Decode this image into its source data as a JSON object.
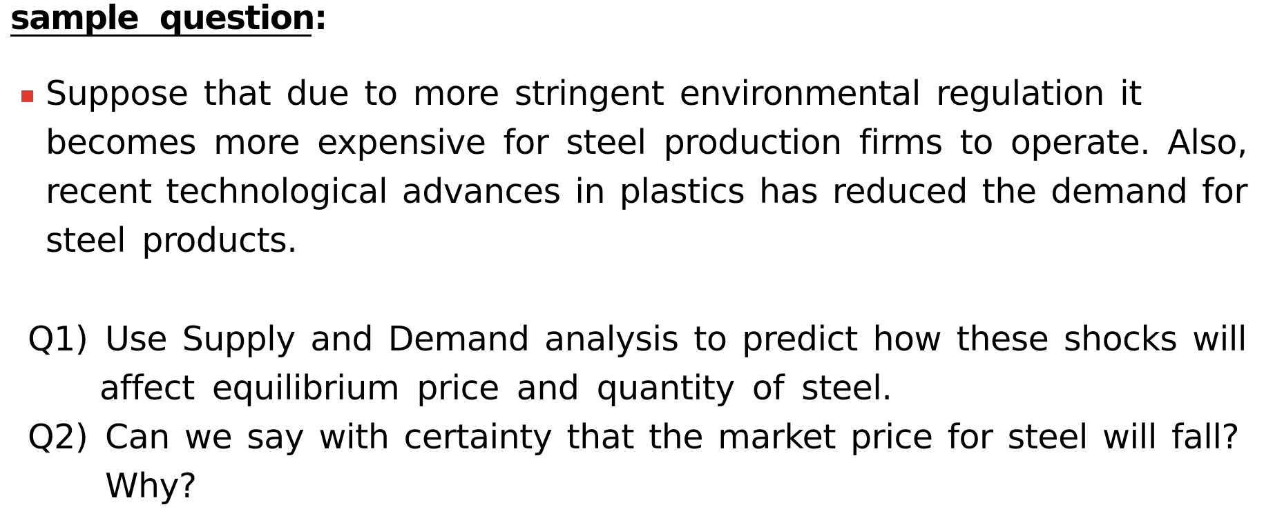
{
  "heading": "sample  question:  ",
  "bullet": {
    "marker_color": "#e23b2e",
    "lines": [
      "Suppose that due to more stringent environmental regulation it",
      "becomes more expensive for steel production firms to operate. Also,",
      "recent technological advances in plastics has reduced the demand for",
      "steel products."
    ]
  },
  "questions": [
    {
      "label": "Q1)",
      "lines": [
        "Use Supply and Demand analysis to predict how these shocks will",
        "affect equilibrium price and quantity of steel."
      ]
    },
    {
      "label": "Q2)",
      "lines": [
        "Can we say with certainty that the market price for steel will fall?",
        "Why?"
      ]
    }
  ]
}
